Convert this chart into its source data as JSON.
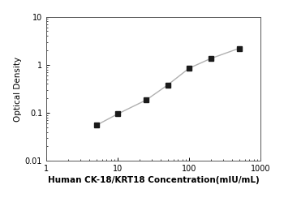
{
  "x": [
    5,
    10,
    25,
    50,
    100,
    200,
    500
  ],
  "y": [
    0.055,
    0.095,
    0.185,
    0.38,
    0.85,
    1.35,
    2.2
  ],
  "xlim": [
    1,
    1000
  ],
  "ylim": [
    0.01,
    10
  ],
  "xlabel": "Human CK-18/KRT18 Concentration(mIU/mL)",
  "ylabel": "Optical Density",
  "line_color": "#b0b0b0",
  "marker_color": "#1a1a1a",
  "marker": "s",
  "marker_size": 4,
  "line_width": 1.0,
  "xlabel_fontsize": 7.5,
  "ylabel_fontsize": 7.5,
  "tick_fontsize": 7,
  "background_color": "#ffffff"
}
